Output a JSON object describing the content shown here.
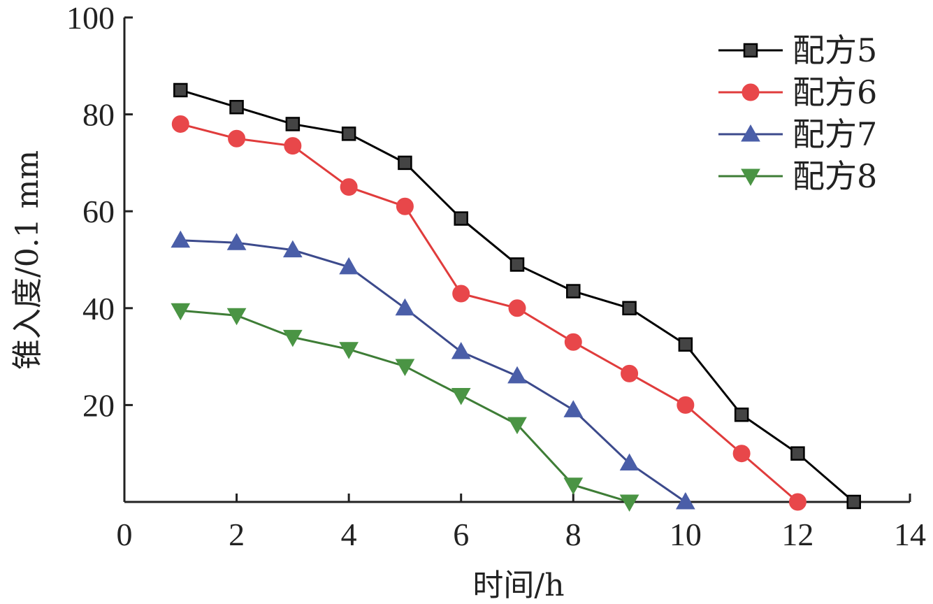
{
  "chart_data": {
    "type": "line",
    "xlabel": "时间/h",
    "ylabel": "锥入度/0.1 mm",
    "xlim": [
      0,
      14
    ],
    "ylim": [
      0,
      100
    ],
    "x_ticks": [
      0,
      2,
      4,
      6,
      8,
      10,
      12,
      14
    ],
    "y_ticks": [
      20,
      40,
      60,
      80,
      100
    ],
    "grid": false,
    "legend_position": "top-right",
    "series": [
      {
        "name": "配方5",
        "color": "#000000",
        "marker": "square",
        "marker_fill": "#444444",
        "x": [
          1,
          2,
          3,
          4,
          5,
          6,
          7,
          8,
          9,
          10,
          11,
          12,
          13
        ],
        "y": [
          85,
          81.5,
          78,
          76,
          70,
          58.5,
          49,
          43.5,
          40,
          32.5,
          18,
          10,
          0
        ]
      },
      {
        "name": "配方6",
        "color": "#e03c3c",
        "marker": "circle",
        "marker_fill": "#e8474a",
        "x": [
          1,
          2,
          3,
          4,
          5,
          6,
          7,
          8,
          9,
          10,
          11,
          12
        ],
        "y": [
          78,
          75,
          73.5,
          65,
          61,
          43,
          40,
          33,
          26.5,
          20,
          10,
          0
        ]
      },
      {
        "name": "配方7",
        "color": "#3c4a8c",
        "marker": "triangle-up",
        "marker_fill": "#4a5ea8",
        "x": [
          1,
          2,
          3,
          4,
          5,
          6,
          7,
          8,
          9,
          10
        ],
        "y": [
          54,
          53.5,
          52,
          48.5,
          40,
          31,
          26,
          19,
          8,
          0
        ]
      },
      {
        "name": "配方8",
        "color": "#3e7d36",
        "marker": "triangle-down",
        "marker_fill": "#4a9444",
        "x": [
          1,
          2,
          3,
          4,
          5,
          6,
          7,
          8,
          9
        ],
        "y": [
          39.5,
          38.5,
          34,
          31.5,
          28,
          22,
          16,
          3.5,
          0
        ]
      }
    ]
  }
}
